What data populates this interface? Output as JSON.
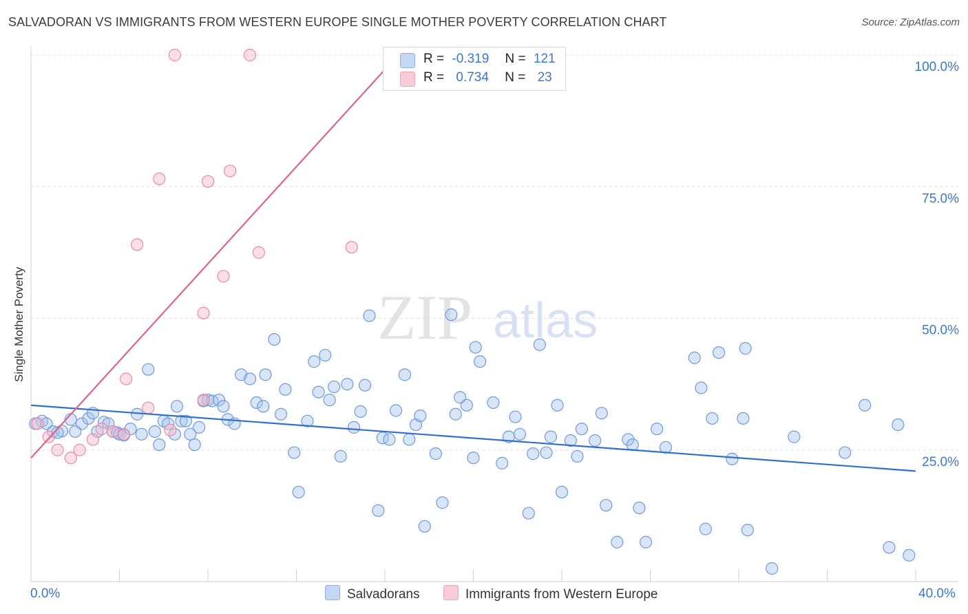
{
  "title": "SALVADORAN VS IMMIGRANTS FROM WESTERN EUROPE SINGLE MOTHER POVERTY CORRELATION CHART",
  "source": "Source: ZipAtlas.com",
  "watermark": {
    "zip": "ZIP",
    "atlas": "atlas"
  },
  "legend_top": {
    "rows": [
      {
        "r_label": "R =",
        "r_value": "-0.319",
        "n_label": "N =",
        "n_value": "121",
        "color": "#a9c4ee"
      },
      {
        "r_label": "R =",
        "r_value": "0.734",
        "n_label": "N =",
        "n_value": "23",
        "color": "#f6b8c8"
      }
    ]
  },
  "chart_data": {
    "type": "scatter",
    "title": "SALVADORAN VS IMMIGRANTS FROM WESTERN EUROPE SINGLE MOTHER POVERTY CORRELATION CHART",
    "xlabel": "",
    "ylabel": "Single Mother Poverty",
    "xlim": [
      0,
      40
    ],
    "ylim": [
      0,
      100
    ],
    "x_tick_labels": [
      "0.0%",
      "40.0%"
    ],
    "y_tick_labels": [
      "25.0%",
      "50.0%",
      "75.0%",
      "100.0%"
    ],
    "y_ticks": [
      25,
      50,
      75,
      100
    ],
    "grid": "horizontal dashed",
    "legend": "bottom-center",
    "series": [
      {
        "name": "Salvadorans",
        "color": "#a9c4ee",
        "stroke": "#6f9ad9",
        "trend": {
          "x": [
            0,
            40
          ],
          "y": [
            33.5,
            21.0
          ],
          "color": "#2f6fcf"
        },
        "points": [
          [
            0.5,
            30.5
          ],
          [
            0.7,
            30
          ],
          [
            1.0,
            28.5
          ],
          [
            1.4,
            28.6
          ],
          [
            1.8,
            30.8
          ],
          [
            2.3,
            30.0
          ],
          [
            2.6,
            31.0
          ],
          [
            2.8,
            32.0
          ],
          [
            3.0,
            28.5
          ],
          [
            3.3,
            30.3
          ],
          [
            3.5,
            30.0
          ],
          [
            3.7,
            28.5
          ],
          [
            3.9,
            28.3
          ],
          [
            4.0,
            28.0
          ],
          [
            4.2,
            27.8
          ],
          [
            4.5,
            29.0
          ],
          [
            4.8,
            31.8
          ],
          [
            5.0,
            28.0
          ],
          [
            5.3,
            40.3
          ],
          [
            5.6,
            28.5
          ],
          [
            5.8,
            26.0
          ],
          [
            6.0,
            30.5
          ],
          [
            6.2,
            30.0
          ],
          [
            6.5,
            28.0
          ],
          [
            6.6,
            33.3
          ],
          [
            6.8,
            30.5
          ],
          [
            7.0,
            30.5
          ],
          [
            7.2,
            28.0
          ],
          [
            7.4,
            26.0
          ],
          [
            7.6,
            29.3
          ],
          [
            7.8,
            34.3
          ],
          [
            8.0,
            34.5
          ],
          [
            8.2,
            34.3
          ],
          [
            8.5,
            34.5
          ],
          [
            8.7,
            33.3
          ],
          [
            8.9,
            30.8
          ],
          [
            9.2,
            30.0
          ],
          [
            9.5,
            39.3
          ],
          [
            9.9,
            38.5
          ],
          [
            10.2,
            34.0
          ],
          [
            10.5,
            33.3
          ],
          [
            10.6,
            39.3
          ],
          [
            11.0,
            46.0
          ],
          [
            11.3,
            31.8
          ],
          [
            11.5,
            36.5
          ],
          [
            11.9,
            24.5
          ],
          [
            12.1,
            17.0
          ],
          [
            12.5,
            30.5
          ],
          [
            12.8,
            41.8
          ],
          [
            13.0,
            36.0
          ],
          [
            13.3,
            43.0
          ],
          [
            13.5,
            34.5
          ],
          [
            13.7,
            37.0
          ],
          [
            14.0,
            23.8
          ],
          [
            14.3,
            37.5
          ],
          [
            14.6,
            29.3
          ],
          [
            14.9,
            32.3
          ],
          [
            15.1,
            37.3
          ],
          [
            15.3,
            50.5
          ],
          [
            15.7,
            13.5
          ],
          [
            15.9,
            27.3
          ],
          [
            16.2,
            27.0
          ],
          [
            16.5,
            32.5
          ],
          [
            16.9,
            39.3
          ],
          [
            17.1,
            27.0
          ],
          [
            17.4,
            29.8
          ],
          [
            17.6,
            31.5
          ],
          [
            17.8,
            10.5
          ],
          [
            18.3,
            24.3
          ],
          [
            18.6,
            15.0
          ],
          [
            19.0,
            50.7
          ],
          [
            19.2,
            31.8
          ],
          [
            19.4,
            35.0
          ],
          [
            19.7,
            33.5
          ],
          [
            20.0,
            23.5
          ],
          [
            20.1,
            44.5
          ],
          [
            20.3,
            41.8
          ],
          [
            20.9,
            34.0
          ],
          [
            21.3,
            22.5
          ],
          [
            21.6,
            27.5
          ],
          [
            21.9,
            31.3
          ],
          [
            22.1,
            28.0
          ],
          [
            22.5,
            13.0
          ],
          [
            22.7,
            24.3
          ],
          [
            23.0,
            45.0
          ],
          [
            23.3,
            24.5
          ],
          [
            23.5,
            27.5
          ],
          [
            23.8,
            33.5
          ],
          [
            24.0,
            17.0
          ],
          [
            24.4,
            26.8
          ],
          [
            24.7,
            23.8
          ],
          [
            24.9,
            29.0
          ],
          [
            25.5,
            26.8
          ],
          [
            25.8,
            32.0
          ],
          [
            26.0,
            14.5
          ],
          [
            26.5,
            7.5
          ],
          [
            27.0,
            27.0
          ],
          [
            27.2,
            26.0
          ],
          [
            27.5,
            14.0
          ],
          [
            27.8,
            7.5
          ],
          [
            28.3,
            29.0
          ],
          [
            28.7,
            25.5
          ],
          [
            30.0,
            42.5
          ],
          [
            30.3,
            36.8
          ],
          [
            30.5,
            10.0
          ],
          [
            30.8,
            31.0
          ],
          [
            31.1,
            43.5
          ],
          [
            31.7,
            23.3
          ],
          [
            32.2,
            31.0
          ],
          [
            32.3,
            44.3
          ],
          [
            32.4,
            9.8
          ],
          [
            34.5,
            27.5
          ],
          [
            37.7,
            33.5
          ],
          [
            33.5,
            2.5
          ],
          [
            36.8,
            24.5
          ],
          [
            38.8,
            6.5
          ],
          [
            39.2,
            29.8
          ],
          [
            39.7,
            5.0
          ],
          [
            0.2,
            30.0
          ],
          [
            1.2,
            28.3
          ],
          [
            2.0,
            28.5
          ]
        ]
      },
      {
        "name": "Immigrants from Western Europe",
        "color": "#f6b8c8",
        "stroke": "#e88aa6",
        "trend": {
          "x": [
            0,
            16.6
          ],
          "y": [
            23.5,
            100
          ],
          "color": "#e0628a"
        },
        "points": [
          [
            0.3,
            30.0
          ],
          [
            0.8,
            27.5
          ],
          [
            1.2,
            25.0
          ],
          [
            1.8,
            23.5
          ],
          [
            2.2,
            25.0
          ],
          [
            2.8,
            27.0
          ],
          [
            3.2,
            29.0
          ],
          [
            3.7,
            28.5
          ],
          [
            4.2,
            28.0
          ],
          [
            4.3,
            38.5
          ],
          [
            4.8,
            64.0
          ],
          [
            5.3,
            33.0
          ],
          [
            5.8,
            76.5
          ],
          [
            6.3,
            28.8
          ],
          [
            6.5,
            100
          ],
          [
            7.8,
            34.5
          ],
          [
            7.8,
            51.0
          ],
          [
            8.0,
            76.0
          ],
          [
            8.7,
            58.0
          ],
          [
            9.0,
            78.0
          ],
          [
            9.9,
            100
          ],
          [
            10.3,
            62.5
          ],
          [
            14.5,
            63.5
          ]
        ]
      }
    ]
  },
  "legend_bottom": {
    "items": [
      {
        "label": "Salvadorans",
        "color": "#a9c4ee"
      },
      {
        "label": "Immigrants from Western Europe",
        "color": "#f6b8c8"
      }
    ]
  }
}
